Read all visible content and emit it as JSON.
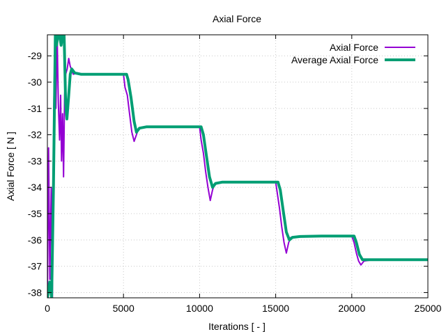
{
  "chart_data": {
    "type": "line",
    "title": "Axial Force",
    "xlabel": "Iterations [ - ]",
    "ylabel": "Axial Force [ N ]",
    "xlim": [
      0,
      25000
    ],
    "ylim": [
      -38.2,
      -28.2
    ],
    "x_ticks": [
      0,
      5000,
      10000,
      15000,
      20000,
      25000
    ],
    "y_ticks": [
      -38,
      -37,
      -36,
      -35,
      -34,
      -33,
      -32,
      -31,
      -30,
      -29
    ],
    "grid": true,
    "legend_position": "top-right",
    "series": [
      {
        "name": "Axial Force",
        "color": "#9400d3",
        "width": 2,
        "points": [
          [
            0,
            -38.2
          ],
          [
            80,
            -32.5
          ],
          [
            160,
            -37.5
          ],
          [
            250,
            -34
          ],
          [
            330,
            -38.2
          ],
          [
            420,
            -31
          ],
          [
            500,
            -28.2
          ],
          [
            560,
            -31
          ],
          [
            640,
            -28.2
          ],
          [
            720,
            -30.8
          ],
          [
            800,
            -32.2
          ],
          [
            870,
            -30.5
          ],
          [
            930,
            -33
          ],
          [
            1000,
            -31.2
          ],
          [
            1060,
            -33.6
          ],
          [
            1130,
            -30.5
          ],
          [
            1200,
            -29.7
          ],
          [
            1300,
            -29.5
          ],
          [
            1400,
            -29.1
          ],
          [
            1500,
            -29.4
          ],
          [
            1700,
            -29.7
          ],
          [
            2000,
            -29.65
          ],
          [
            2400,
            -29.7
          ],
          [
            3000,
            -29.7
          ],
          [
            4000,
            -29.7
          ],
          [
            5000,
            -29.7
          ],
          [
            5100,
            -30.2
          ],
          [
            5250,
            -30.5
          ],
          [
            5400,
            -31.2
          ],
          [
            5550,
            -31.9
          ],
          [
            5700,
            -32.25
          ],
          [
            5850,
            -32.0
          ],
          [
            6000,
            -31.75
          ],
          [
            6300,
            -31.72
          ],
          [
            7000,
            -31.7
          ],
          [
            8000,
            -31.7
          ],
          [
            9000,
            -31.7
          ],
          [
            10000,
            -31.7
          ],
          [
            10100,
            -32.2
          ],
          [
            10250,
            -32.7
          ],
          [
            10400,
            -33.4
          ],
          [
            10550,
            -34.0
          ],
          [
            10700,
            -34.5
          ],
          [
            10850,
            -34.1
          ],
          [
            11000,
            -33.85
          ],
          [
            11500,
            -33.82
          ],
          [
            12500,
            -33.8
          ],
          [
            14000,
            -33.8
          ],
          [
            15000,
            -33.8
          ],
          [
            15100,
            -34.2
          ],
          [
            15250,
            -34.8
          ],
          [
            15400,
            -35.5
          ],
          [
            15550,
            -36.1
          ],
          [
            15700,
            -36.5
          ],
          [
            15850,
            -36.1
          ],
          [
            16000,
            -35.9
          ],
          [
            16500,
            -35.88
          ],
          [
            18000,
            -35.85
          ],
          [
            19000,
            -35.85
          ],
          [
            20000,
            -35.85
          ],
          [
            20150,
            -36.1
          ],
          [
            20300,
            -36.5
          ],
          [
            20450,
            -36.8
          ],
          [
            20600,
            -36.95
          ],
          [
            20800,
            -36.8
          ],
          [
            21200,
            -36.77
          ],
          [
            22000,
            -36.75
          ],
          [
            23000,
            -36.75
          ],
          [
            25000,
            -36.75
          ]
        ]
      },
      {
        "name": "Average Axial Force",
        "color": "#009e73",
        "width": 4,
        "points": [
          [
            0,
            -38.2
          ],
          [
            150,
            -37.6
          ],
          [
            280,
            -38.2
          ],
          [
            400,
            -34
          ],
          [
            520,
            -28.2
          ],
          [
            600,
            -28.6
          ],
          [
            700,
            -28.2
          ],
          [
            800,
            -28.2
          ],
          [
            900,
            -28.6
          ],
          [
            1000,
            -28.2
          ],
          [
            1100,
            -28.2
          ],
          [
            1200,
            -30.8
          ],
          [
            1280,
            -31.4
          ],
          [
            1400,
            -30.5
          ],
          [
            1500,
            -29.7
          ],
          [
            1600,
            -29.5
          ],
          [
            1800,
            -29.65
          ],
          [
            2200,
            -29.7
          ],
          [
            3000,
            -29.7
          ],
          [
            4000,
            -29.7
          ],
          [
            5200,
            -29.7
          ],
          [
            5300,
            -29.9
          ],
          [
            5500,
            -30.6
          ],
          [
            5700,
            -31.5
          ],
          [
            5850,
            -31.9
          ],
          [
            6050,
            -31.75
          ],
          [
            6500,
            -31.7
          ],
          [
            8000,
            -31.7
          ],
          [
            10100,
            -31.7
          ],
          [
            10250,
            -32.0
          ],
          [
            10450,
            -32.8
          ],
          [
            10650,
            -33.6
          ],
          [
            10850,
            -34.0
          ],
          [
            11050,
            -33.85
          ],
          [
            11500,
            -33.8
          ],
          [
            13000,
            -33.8
          ],
          [
            15150,
            -33.8
          ],
          [
            15300,
            -34.1
          ],
          [
            15500,
            -34.9
          ],
          [
            15700,
            -35.7
          ],
          [
            15900,
            -36.0
          ],
          [
            16100,
            -35.9
          ],
          [
            16600,
            -35.87
          ],
          [
            18000,
            -35.85
          ],
          [
            20150,
            -35.85
          ],
          [
            20300,
            -36.1
          ],
          [
            20500,
            -36.55
          ],
          [
            20700,
            -36.75
          ],
          [
            21000,
            -36.75
          ],
          [
            23000,
            -36.75
          ],
          [
            25000,
            -36.75
          ]
        ]
      }
    ]
  }
}
